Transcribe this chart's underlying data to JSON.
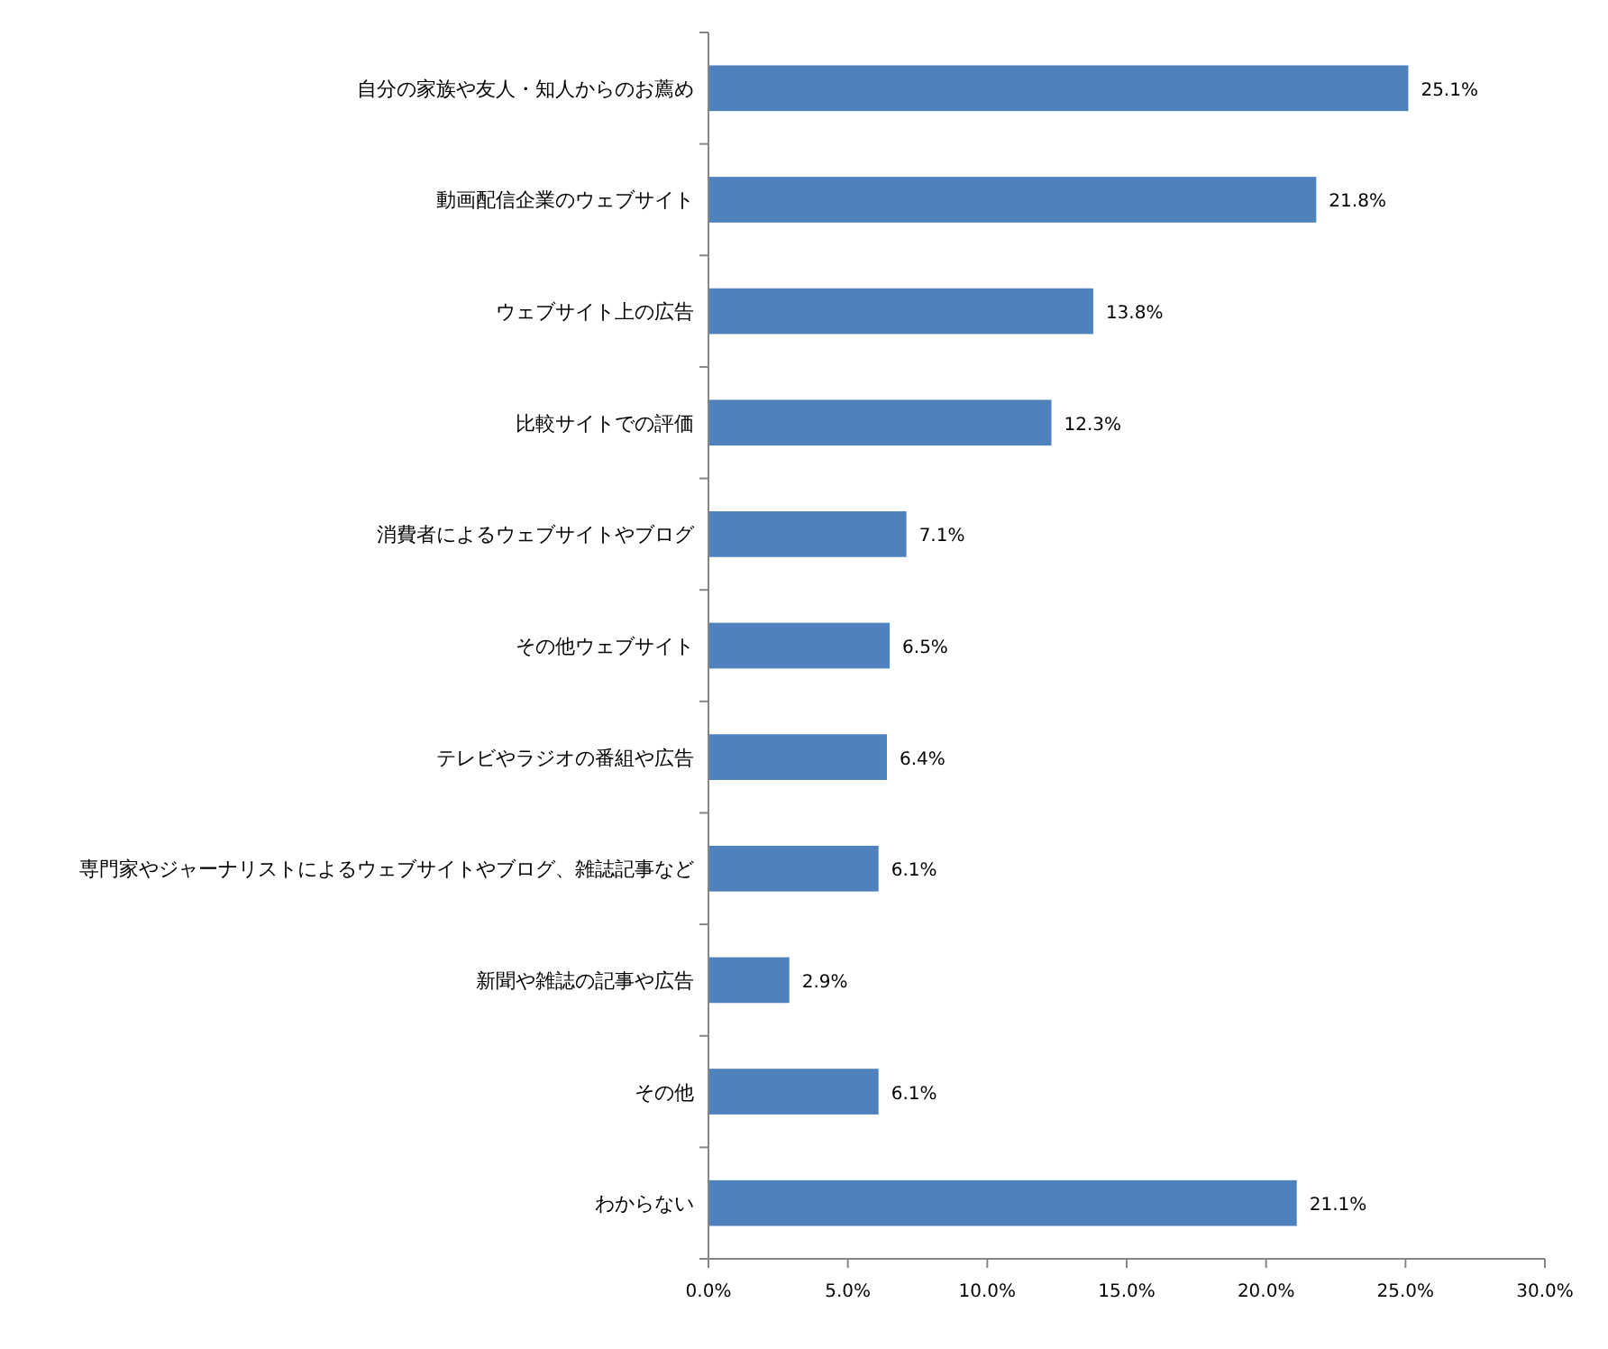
{
  "chart_data": {
    "type": "bar",
    "orientation": "horizontal",
    "color": "#4f81bd",
    "categories": [
      "自分の家族や友人・知人からのお薦め",
      "動画配信企業のウェブサイト",
      "ウェブサイト上の広告",
      "比較サイトでの評価",
      "消費者によるウェブサイトやブログ",
      "その他ウェブサイト",
      "テレビやラジオの番組や広告",
      "専門家やジャーナリストによるウェブサイトやブログ、雑誌記事など",
      "新聞や雑誌の記事や広告",
      "その他",
      "わからない"
    ],
    "values": [
      25.1,
      21.8,
      13.8,
      12.3,
      7.1,
      6.5,
      6.4,
      6.1,
      2.9,
      6.1,
      21.1
    ],
    "value_labels": [
      "25.1%",
      "21.8%",
      "13.8%",
      "12.3%",
      "7.1%",
      "6.5%",
      "6.4%",
      "6.1%",
      "2.9%",
      "6.1%",
      "21.1%"
    ],
    "xlim": [
      0,
      30
    ],
    "xticks": [
      {
        "value": 0,
        "label": "0.0%"
      },
      {
        "value": 5,
        "label": "5.0%"
      },
      {
        "value": 10,
        "label": "10.0%"
      },
      {
        "value": 15,
        "label": "15.0%"
      },
      {
        "value": 20,
        "label": "20.0%"
      },
      {
        "value": 25,
        "label": "25.0%"
      },
      {
        "value": 30,
        "label": "30.0%"
      }
    ],
    "grid": false
  }
}
